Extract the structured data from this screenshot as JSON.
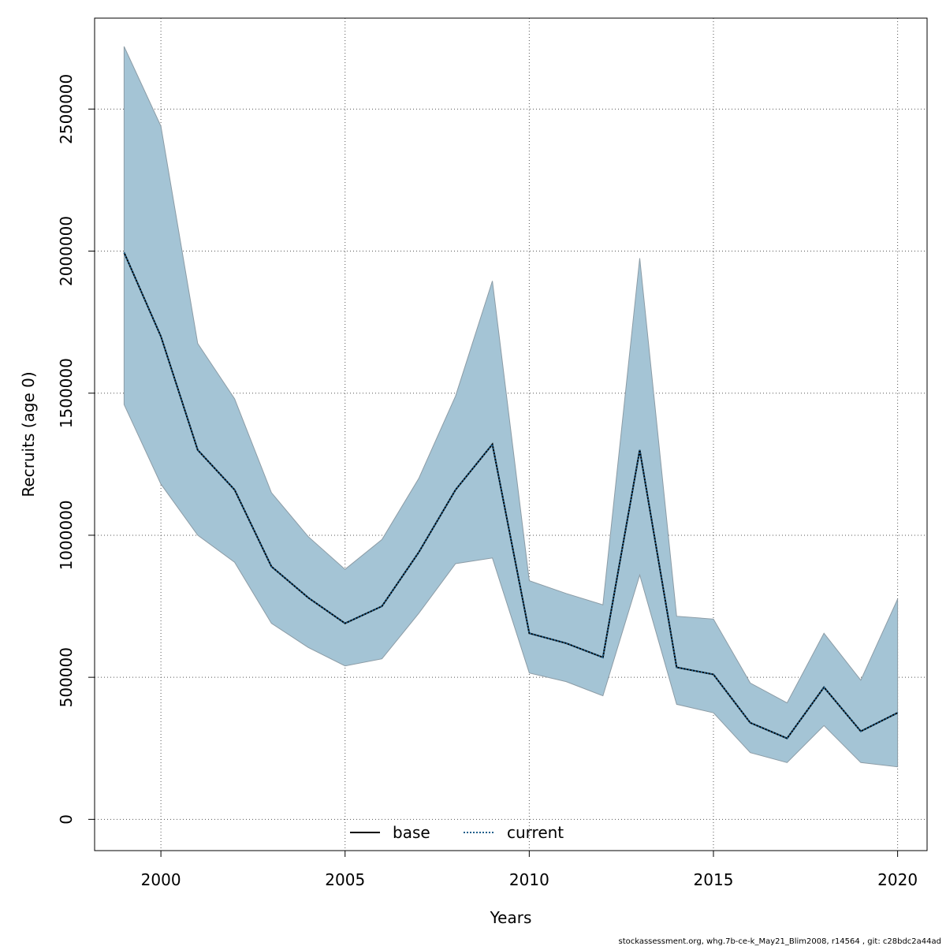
{
  "chart_data": {
    "type": "area",
    "xlabel": "Years",
    "ylabel": "Recruits (age 0)",
    "xlim": [
      1998.2,
      2020.8
    ],
    "ylim": [
      -110000,
      2820000
    ],
    "x_ticks": [
      2000,
      2005,
      2010,
      2015,
      2020
    ],
    "x_tick_labels": [
      "2000",
      "2005",
      "2010",
      "2015",
      "2020"
    ],
    "y_ticks": [
      0,
      500000,
      1000000,
      1500000,
      2000000,
      2500000
    ],
    "y_tick_labels": [
      "0",
      "500000",
      "1000000",
      "1500000",
      "2000000",
      "2500000"
    ],
    "grid": true,
    "legend_position": "bottom-center",
    "x": [
      1999,
      2000,
      2001,
      2002,
      2003,
      2004,
      2005,
      2006,
      2007,
      2008,
      2009,
      2010,
      2011,
      2012,
      2013,
      2014,
      2015,
      2016,
      2017,
      2018,
      2019,
      2020
    ],
    "band": {
      "lower": [
        1460000,
        1180000,
        1000000,
        905000,
        690000,
        605000,
        540000,
        565000,
        725000,
        900000,
        920000,
        515000,
        485000,
        435000,
        860000,
        405000,
        375000,
        235000,
        200000,
        330000,
        200000,
        185000
      ],
      "upper": [
        2720000,
        2440000,
        1675000,
        1480000,
        1150000,
        995000,
        880000,
        985000,
        1200000,
        1490000,
        1895000,
        840000,
        795000,
        755000,
        1975000,
        715000,
        705000,
        480000,
        410000,
        655000,
        490000,
        775000
      ],
      "color": "#a4c4d5",
      "edge_color": "#8c9ca6"
    },
    "series": [
      {
        "name": "base",
        "style": "solid",
        "color": "#000000",
        "values": [
          1995000,
          1700000,
          1300000,
          1160000,
          890000,
          780000,
          690000,
          750000,
          940000,
          1160000,
          1320000,
          655000,
          620000,
          570000,
          1300000,
          535000,
          510000,
          340000,
          285000,
          465000,
          310000,
          375000
        ]
      },
      {
        "name": "current",
        "style": "dotted",
        "color": "#1f5f8b",
        "values": [
          1995000,
          1700000,
          1300000,
          1160000,
          890000,
          780000,
          690000,
          750000,
          940000,
          1160000,
          1320000,
          655000,
          620000,
          570000,
          1300000,
          535000,
          510000,
          340000,
          285000,
          465000,
          310000,
          375000
        ]
      }
    ]
  },
  "footer": "stockassessment.org, whg.7b-ce-k_May21_Blim2008, r14564 , git: c28bdc2a44ad"
}
